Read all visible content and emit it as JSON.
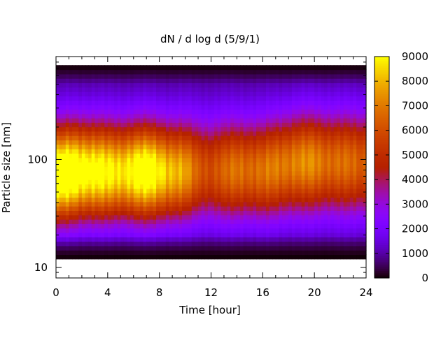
{
  "chart_data": {
    "type": "heatmap",
    "title": "dN / d log d (5/9/1)",
    "xlabel": "Time [hour]",
    "ylabel": "Particle size [nm]",
    "x_range": [
      0,
      24
    ],
    "x_ticks": [
      0,
      4,
      8,
      12,
      16,
      20,
      24
    ],
    "x_tick_labels": [
      "0",
      "4",
      "8",
      "12",
      "16",
      "20",
      "24"
    ],
    "y_scale": "log",
    "y_range": [
      8,
      900
    ],
    "y_ticks": [
      10,
      100
    ],
    "y_tick_labels": [
      "10",
      "100"
    ],
    "colorbar": {
      "range": [
        0,
        9000
      ],
      "ticks": [
        0,
        1000,
        2000,
        3000,
        4000,
        5000,
        6000,
        7000,
        8000,
        9000
      ],
      "tick_labels": [
        "0",
        "1000",
        "2000",
        "3000",
        "4000",
        "5000",
        "6000",
        "7000",
        "8000",
        "9000"
      ],
      "colormap": "gnuplot-pm3d-black-purple-red-yellow"
    },
    "lowest_size_nm": 12,
    "highest_size_nm": 750,
    "mode_profile": [
      {
        "time": 0,
        "peak": 8200,
        "mode_nm": 75
      },
      {
        "time": 1,
        "peak": 8300,
        "mode_nm": 78
      },
      {
        "time": 2,
        "peak": 8000,
        "mode_nm": 80
      },
      {
        "time": 3,
        "peak": 7600,
        "mode_nm": 80
      },
      {
        "time": 4,
        "peak": 7000,
        "mode_nm": 80
      },
      {
        "time": 5,
        "peak": 6900,
        "mode_nm": 80
      },
      {
        "time": 6,
        "peak": 7600,
        "mode_nm": 80
      },
      {
        "time": 7,
        "peak": 7800,
        "mode_nm": 80
      },
      {
        "time": 8,
        "peak": 7200,
        "mode_nm": 80
      },
      {
        "time": 9,
        "peak": 6300,
        "mode_nm": 80
      },
      {
        "time": 10,
        "peak": 5600,
        "mode_nm": 82
      },
      {
        "time": 11,
        "peak": 4500,
        "mode_nm": 85
      },
      {
        "time": 12,
        "peak": 4000,
        "mode_nm": 85
      },
      {
        "time": 13,
        "peak": 4400,
        "mode_nm": 85
      },
      {
        "time": 14,
        "peak": 5000,
        "mode_nm": 85
      },
      {
        "time": 15,
        "peak": 4800,
        "mode_nm": 85
      },
      {
        "time": 16,
        "peak": 4700,
        "mode_nm": 85
      },
      {
        "time": 17,
        "peak": 5200,
        "mode_nm": 90
      },
      {
        "time": 18,
        "peak": 5300,
        "mode_nm": 95
      },
      {
        "time": 19,
        "peak": 5300,
        "mode_nm": 100
      },
      {
        "time": 20,
        "peak": 5500,
        "mode_nm": 100
      },
      {
        "time": 21,
        "peak": 5000,
        "mode_nm": 100
      },
      {
        "time": 22,
        "peak": 4800,
        "mode_nm": 100
      },
      {
        "time": 23,
        "peak": 4700,
        "mode_nm": 100
      },
      {
        "time": 24,
        "peak": 4600,
        "mode_nm": 100
      }
    ]
  }
}
